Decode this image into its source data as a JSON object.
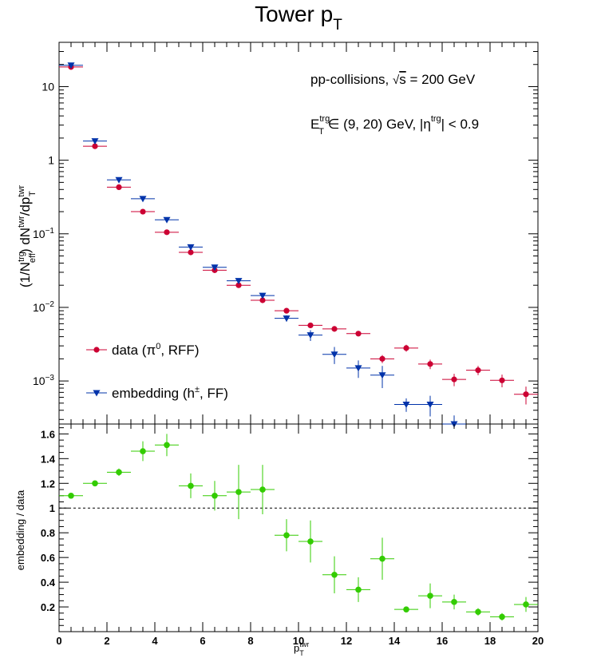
{
  "chart_data": [
    {
      "type": "scatter",
      "title": "Tower p",
      "title_sub": "T",
      "ylabel": {
        "pre": "(1/N",
        "sup1": "trg",
        "sub1": "eff",
        "mid": ") dN",
        "sup2": "twr",
        "mid2": "/dp",
        "sup3": "twr",
        "sub3": "T"
      },
      "y_scale": "log",
      "xlim": [
        0,
        20
      ],
      "ylim": [
        0.00026,
        40
      ],
      "y_ticks": [
        {
          "value": 10,
          "base": "10",
          "exp": ""
        },
        {
          "value": 1,
          "base": "1",
          "exp": ""
        },
        {
          "value": 0.1,
          "base": "10",
          "exp": "−1"
        },
        {
          "value": 0.01,
          "base": "10",
          "exp": "−2"
        },
        {
          "value": 0.001,
          "base": "10",
          "exp": "−3"
        }
      ],
      "annotations": {
        "line1": {
          "pre": "pp-collisions, ",
          "root": "s",
          "post": " = 200 GeV"
        },
        "line2": {
          "pre": "E",
          "sup1": "trg",
          "sub1": "T",
          "mid": " ∈ (9, 20) GeV, |η",
          "sup2": "trg",
          "post": "| < 0.9"
        }
      },
      "legend_position": "bottom-left",
      "series": [
        {
          "name_main": "data (π",
          "name_sup": "0",
          "name_end": ", RFF)",
          "color": "#cc0033",
          "marker": "circle",
          "x": [
            0.5,
            1.5,
            2.5,
            3.5,
            4.5,
            5.5,
            6.5,
            7.5,
            8.5,
            9.5,
            10.5,
            11.5,
            12.5,
            13.5,
            14.5,
            15.5,
            16.5,
            17.5,
            18.5,
            19.5
          ],
          "y": [
            18.5,
            1.55,
            0.43,
            0.2,
            0.105,
            0.056,
            0.032,
            0.02,
            0.0125,
            0.009,
            0.0057,
            0.0051,
            0.0044,
            0.002,
            0.0028,
            0.0017,
            0.00105,
            0.0014,
            0.00102,
            0.00066
          ],
          "yerr": [
            0.4,
            0.04,
            0.012,
            0.006,
            0.003,
            0.0018,
            0.0012,
            0.0008,
            0.0006,
            0.0005,
            0.0004,
            0.0004,
            0.00035,
            0.00025,
            0.0003,
            0.00025,
            0.0002,
            0.0002,
            0.0002,
            0.00018
          ]
        },
        {
          "name_main": "embedding (h",
          "name_sup": "±",
          "name_end": ", FF)",
          "color": "#0033aa",
          "marker": "triangle-down",
          "x": [
            0.5,
            1.5,
            2.5,
            3.5,
            4.5,
            5.5,
            6.5,
            7.5,
            8.5,
            9.5,
            10.5,
            11.5,
            12.5,
            13.5,
            14.5,
            15.5,
            16.5
          ],
          "y": [
            19.5,
            1.82,
            0.54,
            0.3,
            0.155,
            0.066,
            0.035,
            0.023,
            0.0145,
            0.0071,
            0.0042,
            0.0023,
            0.0015,
            0.0012,
            0.00048,
            0.00048,
            0.00026
          ],
          "yerr": [
            0.5,
            0.05,
            0.015,
            0.009,
            0.005,
            0.003,
            0.002,
            0.0015,
            0.001,
            0.0007,
            0.0007,
            0.0006,
            0.0004,
            0.0004,
            0.0001,
            0.00015,
            8e-05
          ]
        }
      ]
    },
    {
      "type": "scatter",
      "xlabel": "p",
      "xlabel_sup": "twr",
      "xlabel_sub": "T",
      "ylabel": "embedding / data",
      "xlim": [
        0,
        20
      ],
      "ylim": [
        0,
        1.68
      ],
      "x_ticks": [
        "0",
        "2",
        "4",
        "6",
        "8",
        "10",
        "12",
        "14",
        "16",
        "18",
        "20"
      ],
      "y_ticks": [
        "0.2",
        "0.4",
        "0.6",
        "0.8",
        "1",
        "1.2",
        "1.4",
        "1.6"
      ],
      "reference_line": 1.0,
      "series": [
        {
          "color": "#33cc00",
          "marker": "circle",
          "x": [
            0.5,
            1.5,
            2.5,
            3.5,
            4.5,
            5.5,
            6.5,
            7.5,
            8.5,
            9.5,
            10.5,
            11.5,
            12.5,
            13.5,
            14.5,
            15.5,
            16.5,
            17.5,
            18.5,
            19.5
          ],
          "y": [
            1.1,
            1.2,
            1.29,
            1.46,
            1.51,
            1.18,
            1.1,
            1.13,
            1.15,
            0.78,
            0.73,
            0.46,
            0.34,
            0.59,
            0.18,
            0.29,
            0.24,
            0.16,
            0.12,
            0.22
          ],
          "yerr": [
            0.02,
            0.02,
            0.03,
            0.08,
            0.09,
            0.1,
            0.12,
            0.22,
            0.2,
            0.13,
            0.17,
            0.15,
            0.1,
            0.17,
            0.02,
            0.1,
            0.06,
            0.03,
            0.03,
            0.06
          ]
        }
      ]
    }
  ]
}
